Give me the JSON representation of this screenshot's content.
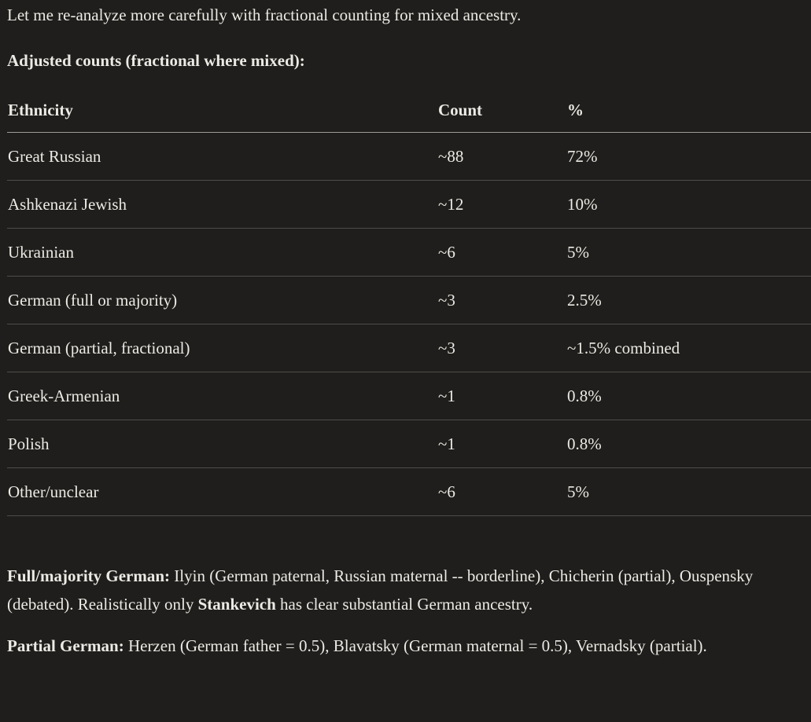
{
  "message": {
    "intro": "Let me re-analyze more carefully with fractional counting for mixed ancestry.",
    "heading": "Adjusted counts (fractional where mixed):"
  },
  "table": {
    "columns": [
      "Ethnicity",
      "Count",
      "%"
    ],
    "rows": [
      [
        "Great Russian",
        "~88",
        "72%"
      ],
      [
        "Ashkenazi Jewish",
        "~12",
        "10%"
      ],
      [
        "Ukrainian",
        "~6",
        "5%"
      ],
      [
        "German (full or majority)",
        "~3",
        "2.5%"
      ],
      [
        "German (partial, fractional)",
        "~3",
        "~1.5% combined"
      ],
      [
        "Greek-Armenian",
        "~1",
        "0.8%"
      ],
      [
        "Polish",
        "~1",
        "0.8%"
      ],
      [
        "Other/unclear",
        "~6",
        "5%"
      ]
    ]
  },
  "paragraphs": {
    "full_majority": {
      "label": "Full/majority German:",
      "text_before_bold": " Ilyin (German paternal, Russian maternal -- borderline), Chicherin (partial), Ouspensky (debated). Realistically only ",
      "bold_name": "Stankevich",
      "text_after_bold": " has clear substantial German ancestry."
    },
    "partial": {
      "label": "Partial German:",
      "text": " Herzen (German father = 0.5), Blavatsky (German maternal = 0.5), Vernadsky (partial)."
    }
  },
  "colors": {
    "background": "#1f1e1c",
    "text": "#eceae4",
    "header_rule": "rgba(236,234,228,0.62)",
    "row_rule": "rgba(236,234,228,0.23)"
  }
}
